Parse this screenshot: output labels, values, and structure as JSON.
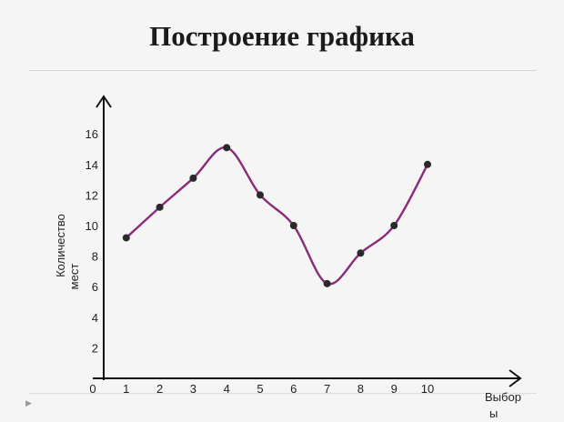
{
  "slide": {
    "title": "Построение графика",
    "corner_marker": "▶"
  },
  "chart_data": {
    "type": "line",
    "title": "Построение графика",
    "x": [
      1,
      2,
      3,
      4,
      5,
      6,
      7,
      8,
      9,
      10
    ],
    "series": [
      {
        "values": [
          9.2,
          11.2,
          13.1,
          15.1,
          12.0,
          10.0,
          6.2,
          8.2,
          10.0,
          14.0
        ],
        "color": "#8a2a7a"
      }
    ],
    "x_tick_labels": [
      "0",
      "1",
      "2",
      "3",
      "4",
      "5",
      "6",
      "7",
      "8",
      "9",
      "10"
    ],
    "y_tick_labels": [
      "2",
      "4",
      "6",
      "8",
      "10",
      "12",
      "14",
      "16"
    ],
    "xlabel": "Выбор ы",
    "ylabel_line1": "Количество",
    "ylabel_line2": "мест",
    "xlim": [
      0,
      11
    ],
    "ylim": [
      0,
      17
    ],
    "grid": false,
    "legend": "none",
    "smooth": true,
    "marker_color": "#2a2a2a"
  }
}
